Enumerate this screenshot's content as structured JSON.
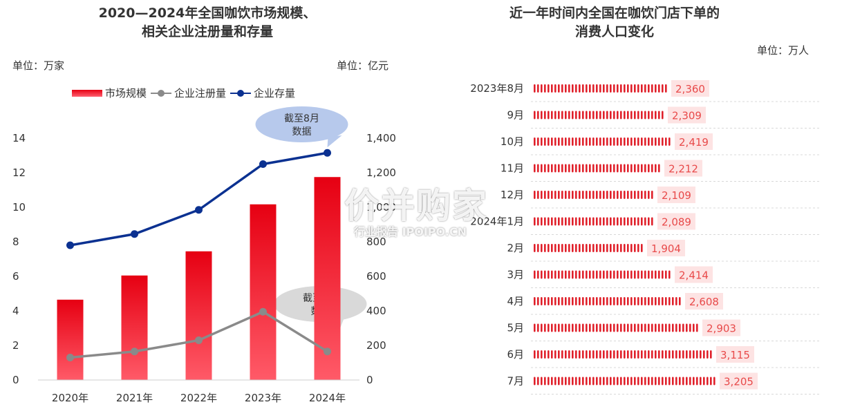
{
  "colors": {
    "bar_top": "#e60012",
    "bar_bottom": "#ff5a68",
    "gray_line": "#8a8a8a",
    "navy_line": "#0b3191",
    "pill_bg": "#fde3e3",
    "pill_text": "#e84a4a",
    "icon_red": "#e0202a",
    "bubble_blue": "#b7c9ec",
    "bubble_gray": "#d9d9d9"
  },
  "left": {
    "title_line1": "2020—2024年全国咖饮市场规模、",
    "title_line2": "相关企业注册量和存量",
    "unit_left": "单位：万家",
    "unit_right": "单位：亿元",
    "legend": [
      "市场规模",
      "企业注册量",
      "企业存量"
    ],
    "callout_top_line1": "截至8月",
    "callout_top_line2": "数据",
    "callout_bottom_line1": "截至8月",
    "callout_bottom_line2": "数据"
  },
  "right": {
    "title_line1": "近一年时间内全国在咖饮门店下单的",
    "title_line2": "消费人口变化",
    "unit": "单位：万人"
  },
  "watermark": {
    "main": "价并购家",
    "sub": "行业报告 IPOIPO.CN"
  },
  "chart_data": [
    {
      "type": "bar",
      "title": "2020—2024年全国咖饮市场规模、相关企业注册量和存量",
      "categories": [
        "2020年",
        "2021年",
        "2022年",
        "2023年",
        "2024年"
      ],
      "y_left_ticks": [
        "0",
        "2",
        "4",
        "6",
        "8",
        "10",
        "12",
        "14"
      ],
      "y_left_range": [
        0,
        14
      ],
      "y_right_ticks": [
        "0",
        "200",
        "400",
        "600",
        "800",
        "1,000",
        "1,200",
        "1,400"
      ],
      "y_right_range": [
        0,
        1400
      ],
      "series": [
        {
          "name": "市场规模",
          "type": "bar",
          "axis": "right",
          "values": [
            465,
            605,
            745,
            1017,
            1175
          ]
        },
        {
          "name": "企业注册量",
          "type": "line",
          "axis": "left",
          "values": [
            1.3,
            1.65,
            2.3,
            3.95,
            1.65
          ]
        },
        {
          "name": "企业存量",
          "type": "line",
          "axis": "left",
          "values": [
            7.8,
            8.45,
            9.85,
            12.5,
            13.15
          ]
        }
      ]
    },
    {
      "type": "bar",
      "orientation": "horizontal",
      "title": "近一年时间内全国在咖饮门店下单的消费人口变化",
      "unit": "万人",
      "categories": [
        "2023年8月",
        "9月",
        "10月",
        "11月",
        "12月",
        "2024年1月",
        "2月",
        "3月",
        "4月",
        "5月",
        "6月",
        "7月"
      ],
      "values": [
        2360,
        2309,
        2419,
        2212,
        2109,
        2089,
        1904,
        2414,
        2608,
        2903,
        3115,
        3205
      ],
      "value_labels": [
        "2,360",
        "2,309",
        "2,419",
        "2,212",
        "2,109",
        "2,089",
        "1,904",
        "2,414",
        "2,608",
        "2,903",
        "3,115",
        "3,205"
      ]
    }
  ]
}
